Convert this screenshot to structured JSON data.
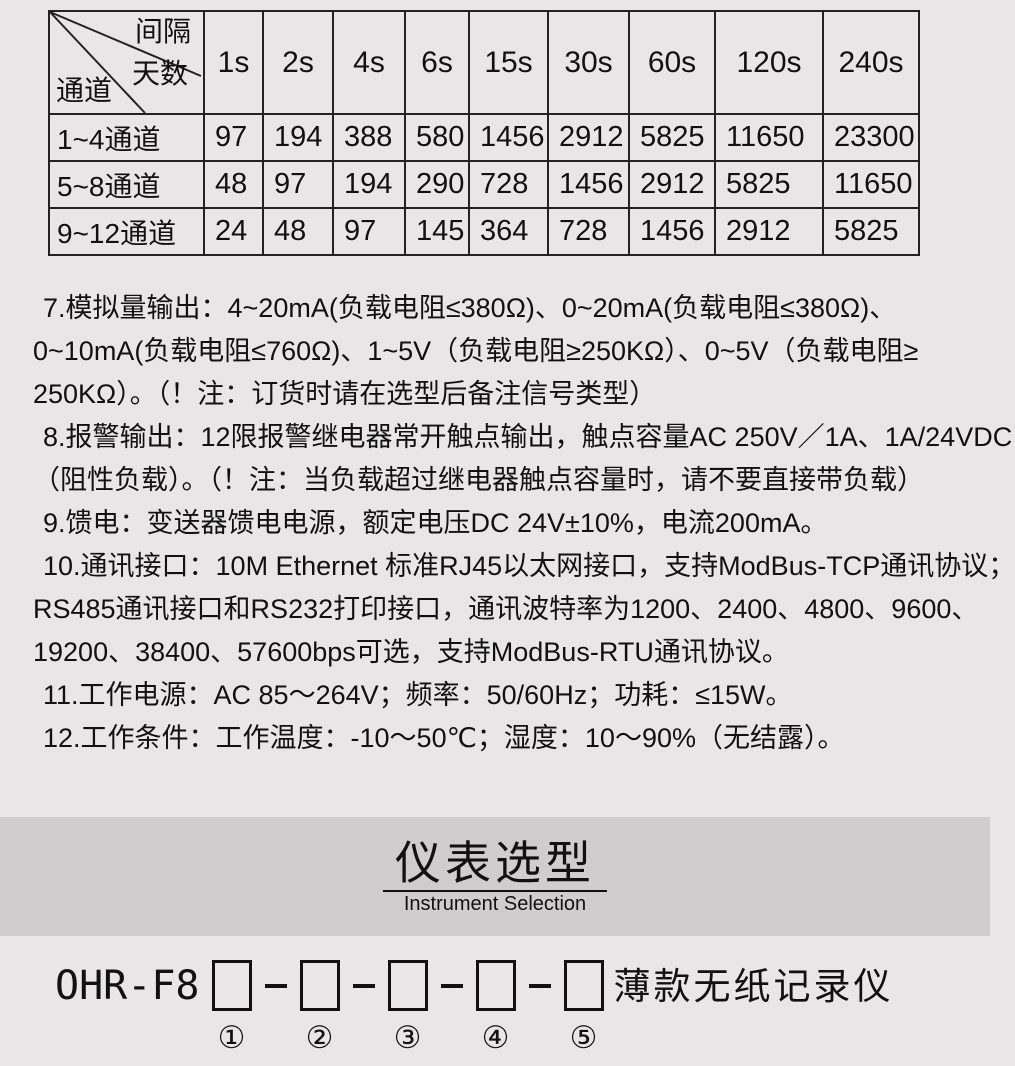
{
  "table": {
    "corner": {
      "interval_label": "间隔",
      "days_label": "天数",
      "channel_label": "通道"
    },
    "columns": [
      "1s",
      "2s",
      "4s",
      "6s",
      "15s",
      "30s",
      "60s",
      "120s",
      "240s"
    ],
    "rows": [
      {
        "label": "1~4通道",
        "values": [
          "97",
          "194",
          "388",
          "580",
          "1456",
          "2912",
          "5825",
          "11650",
          "23300"
        ]
      },
      {
        "label": "5~8通道",
        "values": [
          "48",
          "97",
          "194",
          "290",
          "728",
          "1456",
          "2912",
          "5825",
          "11650"
        ]
      },
      {
        "label": "9~12通道",
        "values": [
          "24",
          "48",
          "97",
          "145",
          "364",
          "728",
          "1456",
          "2912",
          "5825"
        ]
      }
    ]
  },
  "specs": {
    "lines": [
      "7.模拟量输出：4~20mA(负载电阻≤380Ω)、0~20mA(负载电阻≤380Ω)、",
      "0~10mA(负载电阻≤760Ω)、1~5V（负载电阻≥250KΩ）、0~5V（负载电阻≥",
      "250KΩ）。（！注：订货时请在选型后备注信号类型）",
      "8.报警输出：12限报警继电器常开触点输出，触点容量AC 250V／1A、1A/24VDC",
      "（阻性负载）。（！注：当负载超过继电器触点容量时，请不要直接带负载）",
      "9.馈电：变送器馈电电源，额定电压DC 24V±10%，电流200mA。",
      "10.通讯接口：10M  Ethernet 标准RJ45以太网接口，支持ModBus-TCP通讯协议；",
      "RS485通讯接口和RS232打印接口，通讯波特率为1200、2400、4800、9600、",
      "19200、38400、57600bps可选，支持ModBus-RTU通讯协议。",
      "11.工作电源：AC 85～264V；频率：50/60Hz；功耗：≤15W。",
      "12.工作条件：工作温度：-10～50℃；湿度：10～90%（无结露）。"
    ]
  },
  "section": {
    "title": "仪表选型",
    "subtitle": "Instrument Selection"
  },
  "model": {
    "prefix": "OHR-F8",
    "suffix": "薄款无纸记录仪",
    "positions": [
      "①",
      "②",
      "③",
      "④",
      "⑤"
    ]
  },
  "colors": {
    "page_bg": "#e8e6e7",
    "band_bg": "#cfcdce",
    "text": "#111111",
    "border": "#222222"
  }
}
